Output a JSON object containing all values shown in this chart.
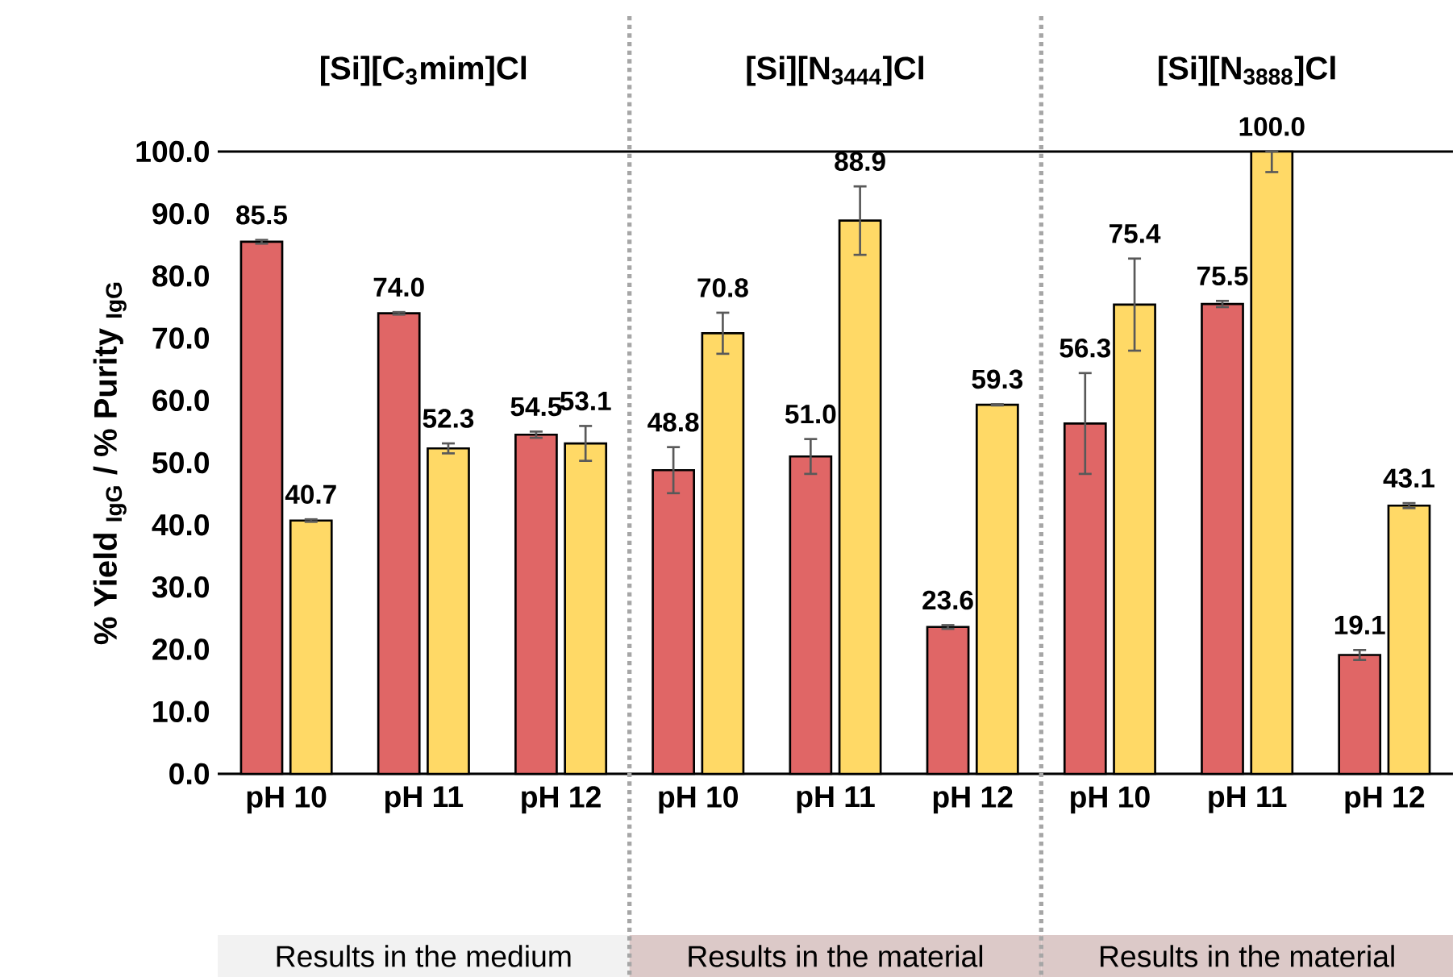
{
  "chart_data": {
    "type": "bar",
    "categories": [
      "pH 10",
      "pH 11",
      "pH 12",
      "pH 10",
      "pH 11",
      "pH 12",
      "pH 10",
      "pH 11",
      "pH 12"
    ],
    "ylabel": "% Yield $_{IgG}$ / % Purity $_{IgG}$",
    "annotations": [
      "[Si][C$_{3}$mim]Cl",
      "[Si][N$_{3444}$]Cl",
      "[Si][N$_{3888}$]Cl",
      "Results in the medium",
      "Results in the material",
      "Results in the material"
    ],
    "series": [
      {
        "color": "#e06666",
        "values": [
          85.5,
          74.0,
          54.5,
          48.8,
          51.0,
          23.6,
          56.3,
          75.5,
          19.1
        ],
        "errors": [
          0.3,
          0.2,
          0.5,
          3.7,
          2.8,
          0.3,
          8.1,
          0.5,
          0.8
        ],
        "value_labels": [
          "85.5",
          "74.0",
          "54.5",
          "48.8",
          "51.0",
          "23.6",
          "56.3",
          "75.5",
          "19.1"
        ]
      },
      {
        "color": "#ffd966",
        "values": [
          40.7,
          52.3,
          53.1,
          70.8,
          88.9,
          59.3,
          75.4,
          100.0,
          43.1
        ],
        "errors": [
          0.2,
          0.8,
          2.8,
          3.3,
          5.5,
          0.1,
          7.4,
          [
            96.7,
            100.0
          ],
          0.4
        ],
        "value_labels": [
          "40.7",
          "52.3",
          "53.1",
          "70.8",
          "88.9",
          "59.3",
          "75.4",
          "100.0",
          "43.1"
        ]
      }
    ],
    "ylim": [
      0,
      100
    ],
    "yticks": [
      {
        "value": 0,
        "label": "0.0"
      },
      {
        "value": 10,
        "label": "10.0"
      },
      {
        "value": 20,
        "label": "20.0"
      },
      {
        "value": 30,
        "label": "30.0"
      },
      {
        "value": 40,
        "label": "40.0"
      },
      {
        "value": 50,
        "label": "50.0"
      },
      {
        "value": 60,
        "label": "60.0"
      },
      {
        "value": 70,
        "label": "70.0"
      },
      {
        "value": 80,
        "label": "80.0"
      },
      {
        "value": 90,
        "label": "90.0"
      },
      {
        "value": 100,
        "label": "100.0"
      }
    ],
    "grid": false
  }
}
